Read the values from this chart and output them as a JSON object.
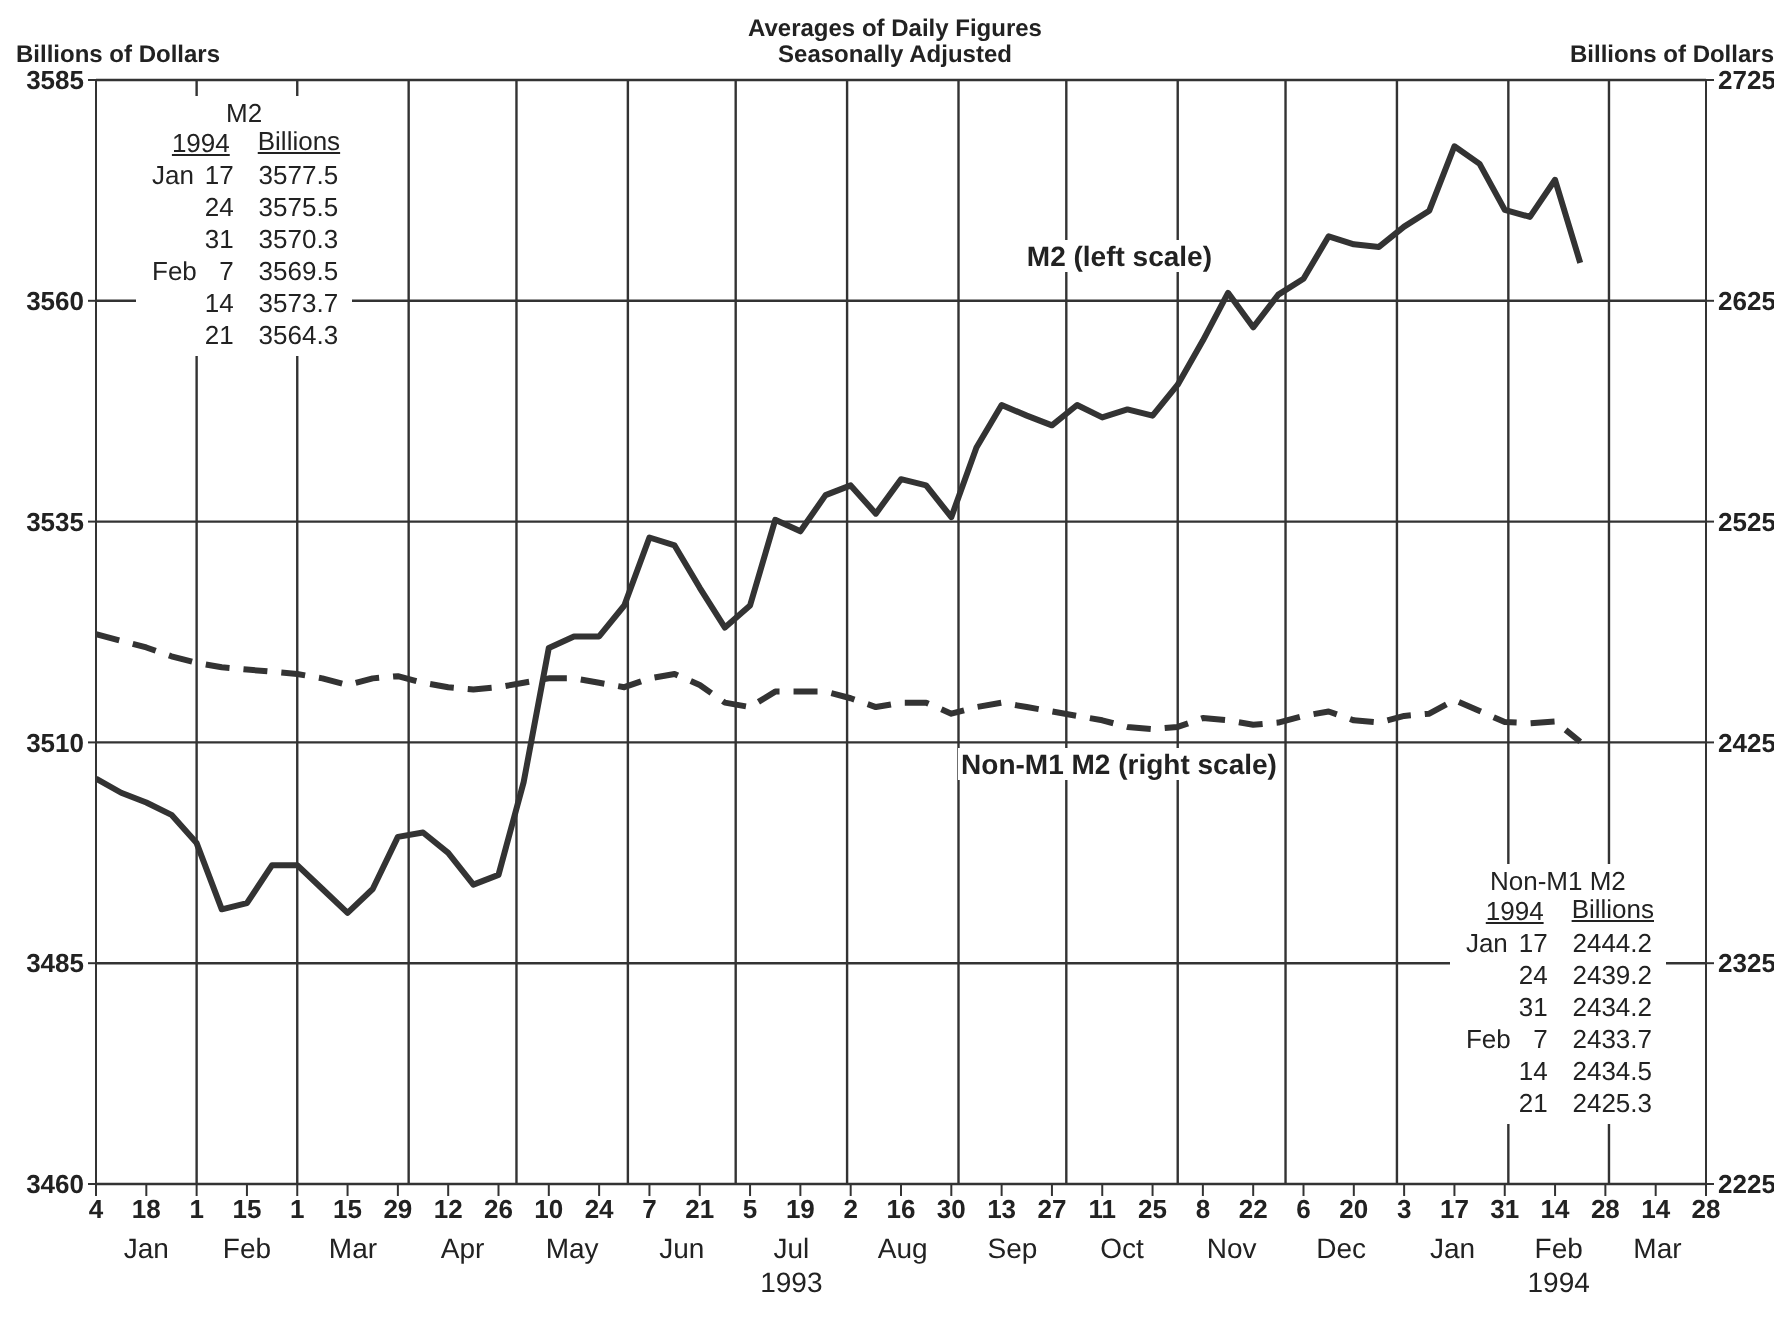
{
  "chart_data": {
    "type": "line",
    "subtitle": "Averages of Daily Figures\nSeasonally Adjusted",
    "ylabel": "Billions of Dollars",
    "y2label": "Billions of Dollars",
    "x": [
      "1993-01-04",
      "1993-01-11",
      "1993-01-18",
      "1993-01-25",
      "1993-02-01",
      "1993-02-08",
      "1993-02-15",
      "1993-02-22",
      "1993-03-01",
      "1993-03-08",
      "1993-03-15",
      "1993-03-22",
      "1993-03-29",
      "1993-04-05",
      "1993-04-12",
      "1993-04-19",
      "1993-04-26",
      "1993-05-03",
      "1993-05-10",
      "1993-05-17",
      "1993-05-24",
      "1993-05-31",
      "1993-06-07",
      "1993-06-14",
      "1993-06-21",
      "1993-06-28",
      "1993-07-05",
      "1993-07-12",
      "1993-07-19",
      "1993-07-26",
      "1993-08-02",
      "1993-08-09",
      "1993-08-16",
      "1993-08-23",
      "1993-08-30",
      "1993-09-06",
      "1993-09-13",
      "1993-09-20",
      "1993-09-27",
      "1993-10-04",
      "1993-10-11",
      "1993-10-18",
      "1993-10-25",
      "1993-11-01",
      "1993-11-08",
      "1993-11-15",
      "1993-11-22",
      "1993-11-29",
      "1993-12-06",
      "1993-12-13",
      "1993-12-20",
      "1993-12-27",
      "1994-01-03",
      "1994-01-10",
      "1994-01-17",
      "1994-01-24",
      "1994-01-31",
      "1994-02-07",
      "1994-02-14",
      "1994-02-21"
    ],
    "series": [
      {
        "name": "M2 (left scale)",
        "color": "#333333",
        "line_style": "solid",
        "axis": "y",
        "values": [
          3505.9,
          3504.3,
          3503.2,
          3501.8,
          3498.6,
          3491.1,
          3491.8,
          3496.1,
          3496.1,
          3493.4,
          3490.7,
          3493.4,
          3499.3,
          3499.8,
          3497.5,
          3493.9,
          3495.0,
          3505.5,
          3520.7,
          3522.0,
          3522.0,
          3525.5,
          3533.2,
          3532.3,
          3527.5,
          3523.0,
          3525.5,
          3535.2,
          3533.9,
          3538.0,
          3539.1,
          3535.9,
          3539.8,
          3539.1,
          3535.5,
          3543.4,
          3548.2,
          3547.0,
          3545.9,
          3548.2,
          3546.8,
          3547.7,
          3547.0,
          3550.5,
          3555.5,
          3560.9,
          3557.0,
          3560.7,
          3562.5,
          3567.3,
          3566.4,
          3566.1,
          3568.4,
          3570.2,
          3577.5,
          3575.5,
          3570.3,
          3569.5,
          3573.7,
          3564.3
        ]
      },
      {
        "name": "Non-M1 M2 (right scale)",
        "color": "#333333",
        "line_style": "dashed",
        "axis": "y2",
        "values": [
          2474,
          2471,
          2468,
          2464,
          2461,
          2459,
          2458,
          2457,
          2456,
          2454,
          2451,
          2454,
          2455,
          2452,
          2450,
          2449,
          2450,
          2452,
          2454,
          2454,
          2452,
          2450,
          2454,
          2456,
          2451,
          2443,
          2441,
          2448,
          2448,
          2448,
          2445,
          2441,
          2443,
          2443,
          2438,
          2441,
          2443,
          2441,
          2439,
          2437,
          2435,
          2432,
          2431,
          2432,
          2436,
          2435,
          2433,
          2434,
          2437,
          2439,
          2435,
          2434,
          2437,
          2438,
          2444.2,
          2439.2,
          2434.2,
          2433.7,
          2434.5,
          2425.3
        ]
      }
    ],
    "xlim": [
      "1993-01-04",
      "1994-03-28"
    ],
    "xticks": [
      {
        "value": "1993-01-04",
        "label": "4"
      },
      {
        "value": "1993-01-18",
        "label": "18"
      },
      {
        "value": "1993-02-01",
        "label": "1"
      },
      {
        "value": "1993-02-15",
        "label": "15"
      },
      {
        "value": "1993-03-01",
        "label": "1"
      },
      {
        "value": "1993-03-15",
        "label": "15"
      },
      {
        "value": "1993-03-29",
        "label": "29"
      },
      {
        "value": "1993-04-12",
        "label": "12"
      },
      {
        "value": "1993-04-26",
        "label": "26"
      },
      {
        "value": "1993-05-10",
        "label": "10"
      },
      {
        "value": "1993-05-24",
        "label": "24"
      },
      {
        "value": "1993-06-07",
        "label": "7"
      },
      {
        "value": "1993-06-21",
        "label": "21"
      },
      {
        "value": "1993-07-05",
        "label": "5"
      },
      {
        "value": "1993-07-19",
        "label": "19"
      },
      {
        "value": "1993-08-02",
        "label": "2"
      },
      {
        "value": "1993-08-16",
        "label": "16"
      },
      {
        "value": "1993-08-30",
        "label": "30"
      },
      {
        "value": "1993-09-13",
        "label": "13"
      },
      {
        "value": "1993-09-27",
        "label": "27"
      },
      {
        "value": "1993-10-11",
        "label": "11"
      },
      {
        "value": "1993-10-25",
        "label": "25"
      },
      {
        "value": "1993-11-08",
        "label": "8"
      },
      {
        "value": "1993-11-22",
        "label": "22"
      },
      {
        "value": "1993-12-06",
        "label": "6"
      },
      {
        "value": "1993-12-20",
        "label": "20"
      },
      {
        "value": "1994-01-03",
        "label": "3"
      },
      {
        "value": "1994-01-17",
        "label": "17"
      },
      {
        "value": "1994-01-31",
        "label": "31"
      },
      {
        "value": "1994-02-14",
        "label": "14"
      },
      {
        "value": "1994-02-28",
        "label": "28"
      },
      {
        "value": "1994-03-14",
        "label": "14"
      },
      {
        "value": "1994-03-28",
        "label": "28"
      }
    ],
    "ylim": [
      3460,
      3585
    ],
    "yticks": [
      3460,
      3485,
      3510,
      3535,
      3560,
      3585
    ],
    "y2lim": [
      2225,
      2725
    ],
    "y2ticks": [
      2225,
      2325,
      2425,
      2525,
      2625,
      2725
    ],
    "grid": "y",
    "ref_lines": [
      {
        "axis": "x",
        "value": "1993-02-01",
        "color": "#333333"
      },
      {
        "axis": "x",
        "value": "1993-03-01",
        "color": "#333333"
      },
      {
        "axis": "x",
        "value": "1993-04-01",
        "color": "#333333"
      },
      {
        "axis": "x",
        "value": "1993-05-01",
        "color": "#333333"
      },
      {
        "axis": "x",
        "value": "1993-06-01",
        "color": "#333333"
      },
      {
        "axis": "x",
        "value": "1993-07-01",
        "color": "#333333"
      },
      {
        "axis": "x",
        "value": "1993-08-01",
        "color": "#333333"
      },
      {
        "axis": "x",
        "value": "1993-09-01",
        "color": "#333333"
      },
      {
        "axis": "x",
        "value": "1993-10-01",
        "color": "#333333"
      },
      {
        "axis": "x",
        "value": "1993-11-01",
        "color": "#333333"
      },
      {
        "axis": "x",
        "value": "1993-12-01",
        "color": "#333333"
      },
      {
        "axis": "x",
        "value": "1994-01-01",
        "color": "#333333"
      },
      {
        "axis": "x",
        "value": "1994-02-01",
        "color": "#333333"
      },
      {
        "axis": "x",
        "value": "1994-03-01",
        "color": "#333333"
      }
    ],
    "annotations": [
      "Jan",
      "Feb",
      "Mar",
      "Apr",
      "May",
      "Jun",
      "Jul\n1993",
      "Aug",
      "Sep",
      "Oct",
      "Nov",
      "Dec",
      "Jan",
      "Feb\n1994",
      "Mar",
      "M2\n1994\tBillions\nJan\t17\t3577.5\n\t24\t3575.5\n\t31\t3570.3\nFeb\t7\t3569.5\n\t14\t3573.7\n\t21\t3564.3",
      "Non-M1 M2\n1994\tBillions\nJan\t17\t2444.2\n\t24\t2439.2\n\t31\t2434.2\nFeb\t7\t2433.7\n\t14\t2434.5\n\t21\t2425.3"
    ]
  }
}
